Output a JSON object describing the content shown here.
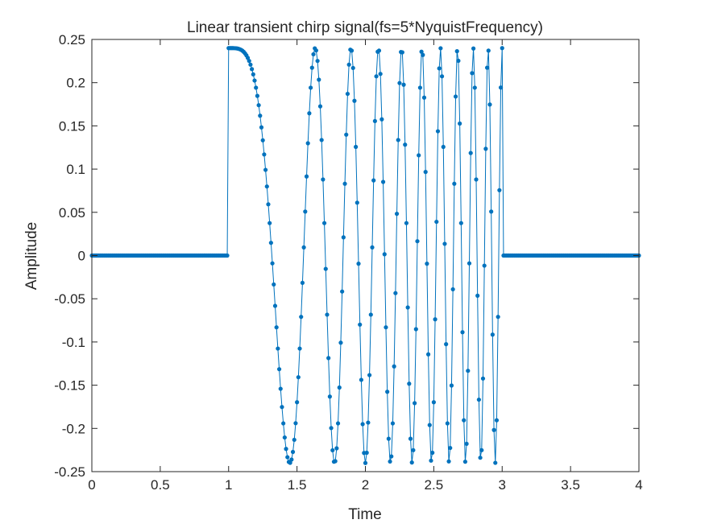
{
  "chart_data": {
    "type": "line",
    "title": "Linear transient chirp signal(fs=5*NyquistFrequency)",
    "xlabel": "Time",
    "ylabel": "Amplitude",
    "xlim": [
      0,
      4
    ],
    "ylim": [
      -0.25,
      0.25
    ],
    "xticks": [
      "0",
      "0.5",
      "1",
      "1.5",
      "2",
      "2.5",
      "3",
      "3.5",
      "4"
    ],
    "yticks": [
      "0.25",
      "0.2",
      "0.15",
      "0.1",
      "0.05",
      "0",
      "-0.05",
      "-0.1",
      "-0.15",
      "-0.2",
      "-0.25"
    ],
    "grid": false,
    "legend": "none",
    "series": [
      {
        "name": "",
        "color": "#0072BD",
        "marker": "point",
        "signal": {
          "amplitude": 0.24,
          "start_time": 1,
          "end_time": 3,
          "start_frequency": 0,
          "end_frequency": 10,
          "chirp": "linear",
          "sample_rate": 100,
          "x_range": [
            0,
            4
          ],
          "value_outside_burst": 0
        }
      }
    ]
  }
}
